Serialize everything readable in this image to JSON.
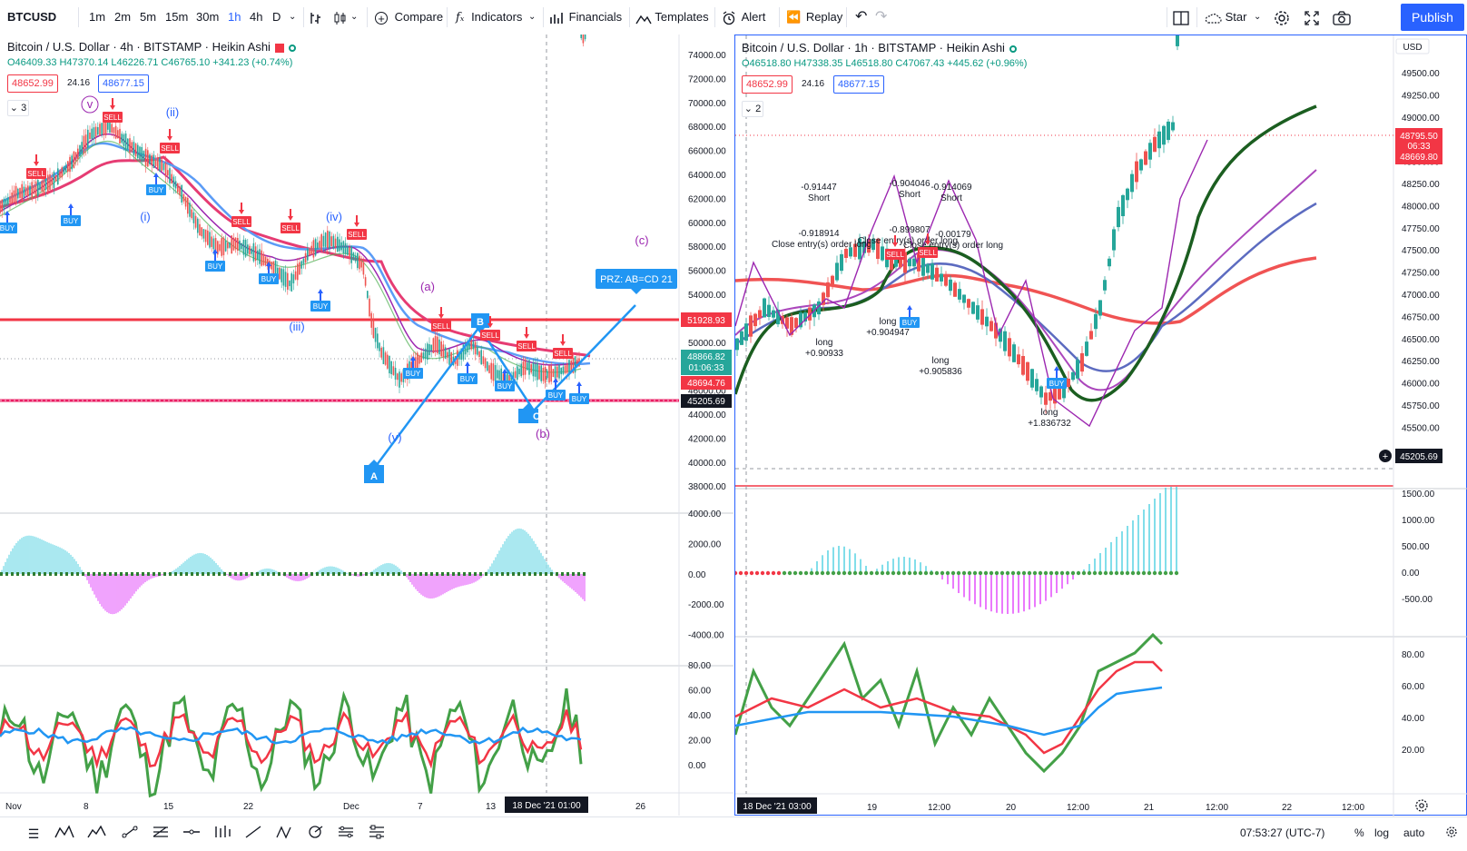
{
  "toolbar": {
    "symbol": "BTCUSD",
    "intervals": [
      "1m",
      "2m",
      "5m",
      "15m",
      "30m",
      "1h",
      "4h",
      "D"
    ],
    "active_interval": "1h",
    "compare": "Compare",
    "indicators": "Indicators",
    "financials": "Financials",
    "templates": "Templates",
    "alert": "Alert",
    "replay": "Replay",
    "star": "Star",
    "publish": "Publish"
  },
  "left_chart": {
    "title": "Bitcoin / U.S. Dollar · 4h · BITSTAMP · Heikin Ashi",
    "ohlc": "O46409.33 H47370.14 L46226.71 C46765.10 +341.23 (+0.74%)",
    "sell_price": "48652.99",
    "spread": "24.16",
    "buy_price": "48677.15",
    "collapse": "3",
    "price_axis": [
      "74000.00",
      "72000.00",
      "70000.00",
      "68000.00",
      "66000.00",
      "64000.00",
      "62000.00",
      "60000.00",
      "58000.00",
      "56000.00",
      "54000.00",
      "52000.00",
      "50000.00",
      "48000.00",
      "46000.00",
      "44000.00",
      "42000.00",
      "40000.00",
      "38000.00"
    ],
    "osc_axis": [
      "4000.00",
      "2000.00",
      "0.00",
      "-2000.00",
      "-4000.00"
    ],
    "rsi_axis": [
      "80.00",
      "60.00",
      "40.00",
      "20.00",
      "0.00"
    ],
    "time_axis": [
      "Nov",
      "8",
      "15",
      "22",
      "Dec",
      "7",
      "13",
      "26"
    ],
    "time_cursor": "18 Dec '21  01:00",
    "price_labels": {
      "red_line": "51928.93",
      "current": "48866.82",
      "countdown": "01:06:33",
      "level": "48694.76",
      "support": "45205.69"
    },
    "prz": "PRZ: AB=CD 21",
    "waves": [
      "v",
      "(ii)",
      "(i)",
      "(iv)",
      "(iii)",
      "(a)",
      "(c)",
      "(b)",
      "(v)"
    ],
    "points": [
      "A",
      "B",
      "C"
    ]
  },
  "right_chart": {
    "title": "Bitcoin / U.S. Dollar · 1h · BITSTAMP · Heikin Ashi",
    "ohlc": "O46518.80 H47338.35 L46518.80 C47067.43 +445.62 (+0.96%)",
    "sell_price": "48652.99",
    "spread": "24.16",
    "buy_price": "48677.15",
    "collapse": "2",
    "currency": "USD",
    "price_axis": [
      "49500.00",
      "49250.00",
      "49000.00",
      "48750.00",
      "48500.00",
      "48250.00",
      "48000.00",
      "47750.00",
      "47500.00",
      "47250.00",
      "47000.00",
      "46750.00",
      "46500.00",
      "46250.00",
      "46000.00",
      "45750.00",
      "45500.00"
    ],
    "osc_axis": [
      "1500.00",
      "1000.00",
      "500.00",
      "0.00",
      "-500.00"
    ],
    "rsi_axis": [
      "80.00",
      "60.00",
      "40.00",
      "20.00"
    ],
    "time_axis": [
      "19",
      "12:00",
      "20",
      "12:00",
      "21",
      "12:00",
      "22",
      "12:00"
    ],
    "time_cursor": "18 Dec '21  03:00",
    "price_labels": {
      "current": "48795.50",
      "countdown": "06:33",
      "level": "48669.80",
      "support": "45205.69"
    },
    "annotations": [
      {
        "text": "-0.91447"
      },
      {
        "text": "Short"
      },
      {
        "text": "-0.904046"
      },
      {
        "text": "Short"
      },
      {
        "text": "-0.914069"
      },
      {
        "text": "Short"
      },
      {
        "text": "-0.918914"
      },
      {
        "text": "-0.899807"
      },
      {
        "text": "-0.00179"
      },
      {
        "text": "Close entry(s) order long"
      },
      {
        "text": "Close entry(s) order long"
      },
      {
        "text": "Close entry(s) order long"
      },
      {
        "text": "long"
      },
      {
        "text": "+0.90933"
      },
      {
        "text": "long"
      },
      {
        "text": "+0.904947"
      },
      {
        "text": "long"
      },
      {
        "text": "+0.905836"
      },
      {
        "text": "long"
      },
      {
        "text": "+1.836732"
      }
    ]
  },
  "bottom_bar": {
    "time": "07:53:27 (UTC-7)",
    "percent": "%",
    "log": "log",
    "auto": "auto"
  },
  "signals": {
    "buy": "BUY",
    "sell": "SELL"
  }
}
